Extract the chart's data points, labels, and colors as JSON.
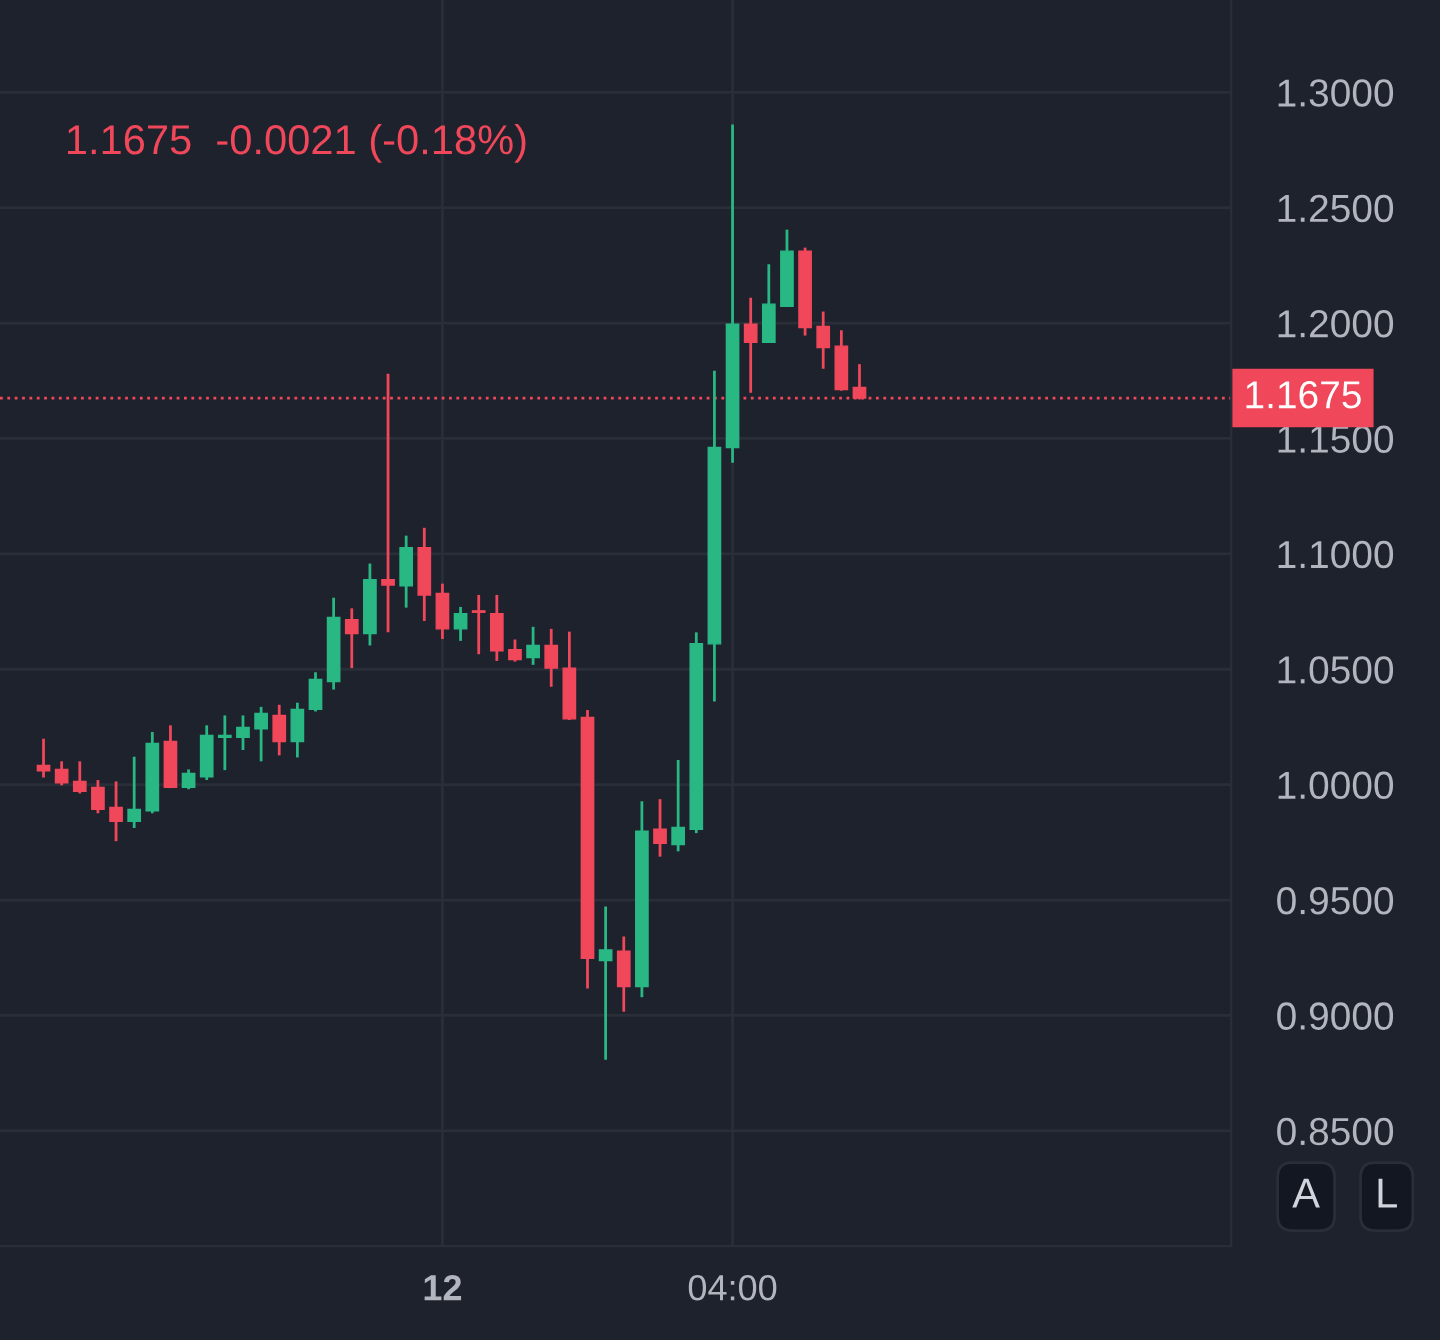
{
  "chart_data": {
    "type": "candlestick",
    "subtitle": "1.1675  -0.0021 (-0.18%)",
    "categories": [
      null,
      null,
      null,
      null,
      null,
      null,
      null,
      null,
      null,
      null,
      null,
      null,
      null,
      null,
      null,
      null,
      null,
      null,
      null,
      null,
      null,
      null,
      "12",
      null,
      null,
      null,
      null,
      null,
      null,
      null,
      null,
      null,
      null,
      null,
      null,
      null,
      null,
      null,
      "04:00",
      null,
      null,
      null,
      null,
      null,
      null,
      null,
      null,
      null,
      null,
      null,
      null,
      null,
      null,
      null,
      null,
      null,
      null,
      null,
      null,
      null,
      null,
      null,
      null,
      null,
      null,
      null
    ],
    "ohlc": [
      [
        1.0083,
        1.0199,
        1.0031,
        1.006
      ],
      [
        1.0066,
        1.0101,
        0.9997,
        1.0008
      ],
      [
        1.0014,
        1.0101,
        0.9962,
        0.9971
      ],
      [
        0.9988,
        1.002,
        0.9876,
        0.9893
      ],
      [
        0.9901,
        1.0014,
        0.9755,
        0.9841
      ],
      [
        0.9841,
        1.0121,
        0.9812,
        0.9893
      ],
      [
        0.9887,
        1.0228,
        0.9876,
        1.0179
      ],
      [
        1.0187,
        1.0257,
        0.9985,
        0.9988
      ],
      [
        0.9988,
        1.0066,
        0.998,
        1.0049
      ],
      [
        1.0034,
        1.0257,
        1.002,
        1.0213
      ],
      [
        1.0205,
        1.03,
        1.0063,
        1.0213
      ],
      [
        1.0205,
        1.03,
        1.015,
        1.0248
      ],
      [
        1.0242,
        1.0337,
        1.0101,
        1.0308
      ],
      [
        1.03,
        1.0346,
        1.0127,
        1.0187
      ],
      [
        1.0187,
        1.0355,
        1.0118,
        1.0326
      ],
      [
        1.0326,
        1.0487,
        1.0317,
        1.0456
      ],
      [
        1.0447,
        1.081,
        1.0412,
        1.0724
      ],
      [
        1.0715,
        1.0764,
        1.0505,
        1.0655
      ],
      [
        1.0655,
        1.0958,
        1.0603,
        1.0888
      ],
      [
        1.0888,
        1.178,
        1.066,
        1.0865
      ],
      [
        1.0862,
        1.1079,
        1.0767,
        1.1027
      ],
      [
        1.1027,
        1.1113,
        1.0709,
        1.0822
      ],
      [
        1.0828,
        1.0871,
        1.0631,
        1.0675
      ],
      [
        1.0675,
        1.077,
        1.0623,
        1.0741
      ],
      [
        1.0753,
        1.0822,
        1.0565,
        1.0747
      ],
      [
        1.0741,
        1.0822,
        1.0536,
        1.058
      ],
      [
        1.0585,
        1.0629,
        1.0533,
        1.0542
      ],
      [
        1.0551,
        1.0684,
        1.0519,
        1.0603
      ],
      [
        1.0603,
        1.0675,
        1.0424,
        1.0505
      ],
      [
        1.0505,
        1.0663,
        1.028,
        1.0285
      ],
      [
        1.0291,
        1.0323,
        0.9117,
        0.9247
      ],
      [
        0.9238,
        0.9472,
        0.8808,
        0.9284
      ],
      [
        0.9278,
        0.9342,
        0.9016,
        0.9125
      ],
      [
        0.9125,
        0.9928,
        0.9079,
        0.9798
      ],
      [
        0.9807,
        0.9937,
        0.9688,
        0.9746
      ],
      [
        0.974,
        1.0107,
        0.9711,
        0.9815
      ],
      [
        0.9807,
        1.066,
        0.979,
        1.0611
      ],
      [
        1.061,
        1.1793,
        1.036,
        1.1461
      ],
      [
        1.1461,
        1.286,
        1.1395,
        1.1995
      ],
      [
        1.1995,
        1.211,
        1.1698,
        1.1917
      ],
      [
        1.1917,
        1.2255,
        1.1917,
        1.2082
      ],
      [
        1.2073,
        1.2405,
        1.2073,
        1.2312
      ],
      [
        1.2312,
        1.2327,
        1.1946,
        1.1981
      ],
      [
        1.1986,
        1.205,
        1.1802,
        1.1894
      ],
      [
        1.19,
        1.1969,
        1.1707,
        1.1712
      ],
      [
        1.1721,
        1.1822,
        1.1669,
        1.1675
      ],
      null,
      null,
      null,
      null,
      null,
      null,
      null,
      null,
      null,
      null,
      null,
      null,
      null,
      null,
      null,
      null,
      null,
      null,
      null,
      null
    ],
    "colors": [
      "#f0475a",
      "#f0475a",
      "#f0475a",
      "#f0475a",
      "#f0475a",
      "#29b884",
      "#29b884",
      "#f0475a",
      "#29b884",
      "#29b884",
      "#29b884",
      "#29b884",
      "#29b884",
      "#f0475a",
      "#29b884",
      "#29b884",
      "#29b884",
      "#f0475a",
      "#29b884",
      "#f0475a",
      "#29b884",
      "#f0475a",
      "#f0475a",
      "#29b884",
      "#f0475a",
      "#f0475a",
      "#f0475a",
      "#29b884",
      "#f0475a",
      "#f0475a",
      "#f0475a",
      "#29b884",
      "#f0475a",
      "#29b884",
      "#f0475a",
      "#29b884",
      "#29b884",
      "#29b884",
      "#29b884",
      "#f0475a",
      "#29b884",
      "#29b884",
      "#f0475a",
      "#f0475a",
      "#f0475a",
      "#f0475a",
      null,
      null,
      null,
      null,
      null,
      null,
      null,
      null,
      null,
      null,
      null,
      null,
      null,
      null,
      null,
      null,
      null,
      null,
      null,
      null
    ],
    "ylim": [
      0.8,
      1.34
    ],
    "yticks": [
      {
        "value": 0.85,
        "label": "0.8500"
      },
      {
        "value": 0.9,
        "label": "0.9000"
      },
      {
        "value": 0.95,
        "label": "0.9500"
      },
      {
        "value": 1.0,
        "label": "1.0000"
      },
      {
        "value": 1.05,
        "label": "1.0500"
      },
      {
        "value": 1.1,
        "label": "1.1000"
      },
      {
        "value": 1.15,
        "label": "1.1500"
      },
      {
        "value": 1.2,
        "label": "1.2000"
      },
      {
        "value": 1.25,
        "label": "1.2500"
      },
      {
        "value": 1.3,
        "label": "1.3000"
      }
    ],
    "grid": true,
    "ref_lines": [
      {
        "axis": "y",
        "value": 1.1675,
        "label": "1.1675",
        "color": "#f0475a",
        "line_style": "dotted"
      }
    ],
    "annotations": [
      "A",
      "L"
    ]
  }
}
